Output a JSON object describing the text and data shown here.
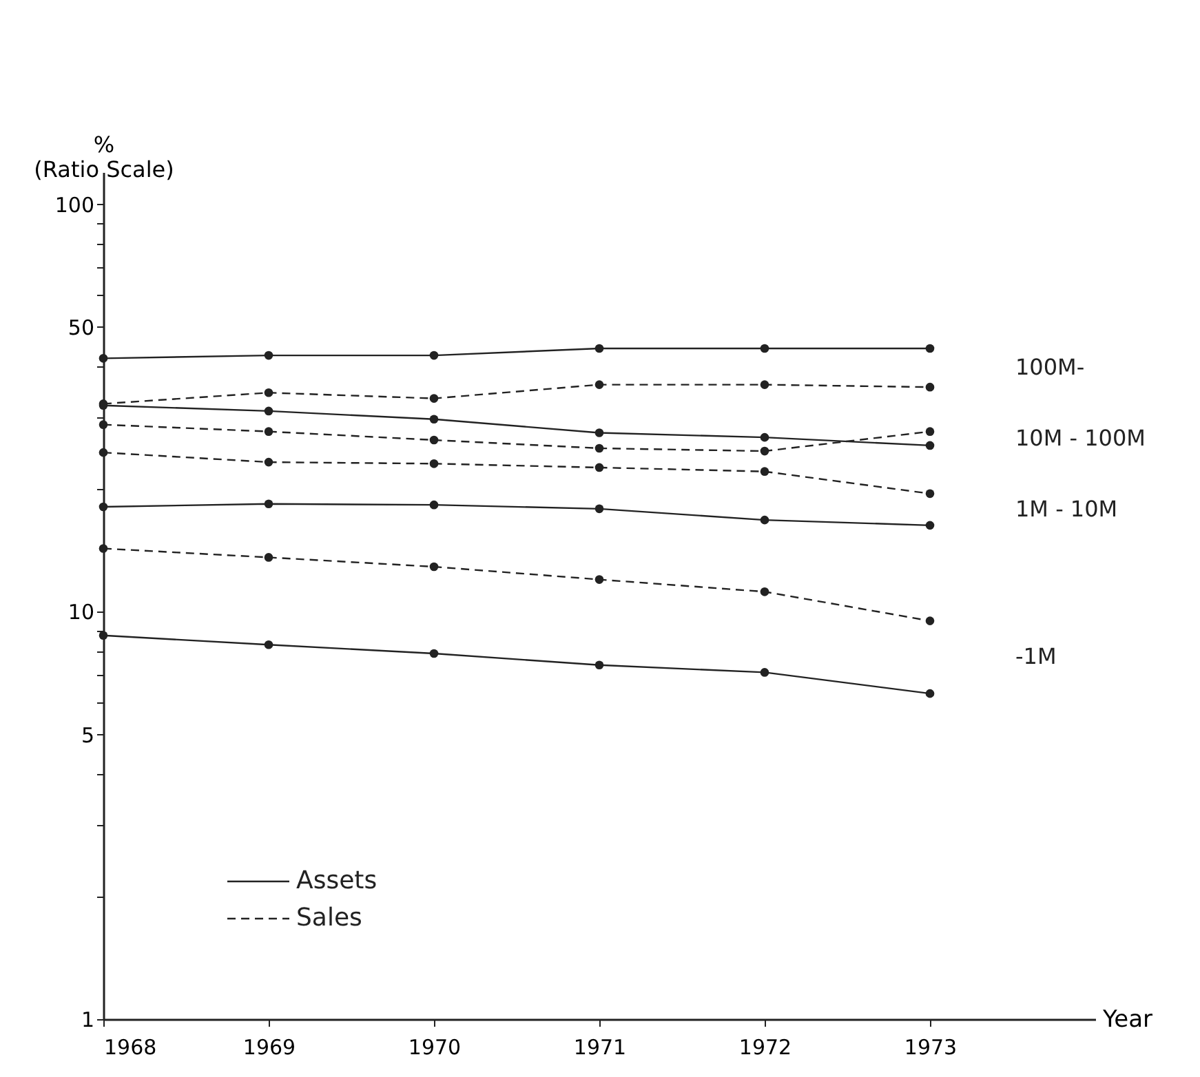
{
  "chart_data": {
    "type": "line",
    "xlabel": "Year",
    "ylabel": "%\n(Ratio Scale)",
    "x": [
      1968,
      1969,
      1970,
      1971,
      1972,
      1973
    ],
    "xlim": [
      1968,
      1974
    ],
    "xticks": [
      1968,
      1969,
      1970,
      1971,
      1972,
      1973
    ],
    "log": "y",
    "ylim": [
      1,
      120
    ],
    "yticks": [
      1,
      {
        "value": 2,
        "label": null
      },
      {
        "value": 3,
        "label": null
      },
      {
        "value": 4,
        "label": null
      },
      5,
      {
        "value": 6,
        "label": null
      },
      {
        "value": 7,
        "label": null
      },
      {
        "value": 8,
        "label": null
      },
      {
        "value": 9,
        "label": null
      },
      10,
      {
        "value": 20,
        "label": null
      },
      {
        "value": 30,
        "label": null
      },
      {
        "value": 40,
        "label": null
      },
      50,
      {
        "value": 60,
        "label": null
      },
      {
        "value": 70,
        "label": null
      },
      {
        "value": 80,
        "label": null
      },
      {
        "value": 90,
        "label": null
      },
      100
    ],
    "grid": false,
    "marker": "circle",
    "legend": "bottom left",
    "series": [
      {
        "name": "Assets",
        "color": "#222222",
        "line_style": "solid",
        "values": [
          41.9,
          42.6,
          42.6,
          44.3,
          44.3,
          44.3
        ]
      },
      {
        "name": "Sales",
        "color": "#222222",
        "line_style": "dashed",
        "values": [
          32.4,
          34.5,
          33.4,
          36.1,
          36.1,
          35.6
        ]
      },
      {
        "color": "#222222",
        "line_style": "solid",
        "values": [
          32.1,
          31.1,
          29.7,
          27.5,
          26.8,
          25.6
        ]
      },
      {
        "color": "#222222",
        "line_style": "dashed",
        "values": [
          28.8,
          27.7,
          26.4,
          25.2,
          24.8,
          27.7
        ]
      },
      {
        "color": "#222222",
        "line_style": "dashed",
        "values": [
          24.6,
          23.3,
          23.1,
          22.6,
          22.1,
          19.5
        ]
      },
      {
        "color": "#222222",
        "line_style": "solid",
        "values": [
          18.1,
          18.4,
          18.3,
          17.9,
          16.8,
          16.3
        ]
      },
      {
        "color": "#222222",
        "line_style": "dashed",
        "values": [
          14.3,
          13.6,
          12.9,
          12.0,
          11.2,
          9.5
        ]
      },
      {
        "color": "#222222",
        "line_style": "solid",
        "values": [
          8.75,
          8.3,
          7.9,
          7.4,
          7.1,
          6.3
        ]
      }
    ],
    "annotations": [
      "100M-",
      "10M - 100M",
      "1M - 10M",
      "-1M"
    ]
  }
}
